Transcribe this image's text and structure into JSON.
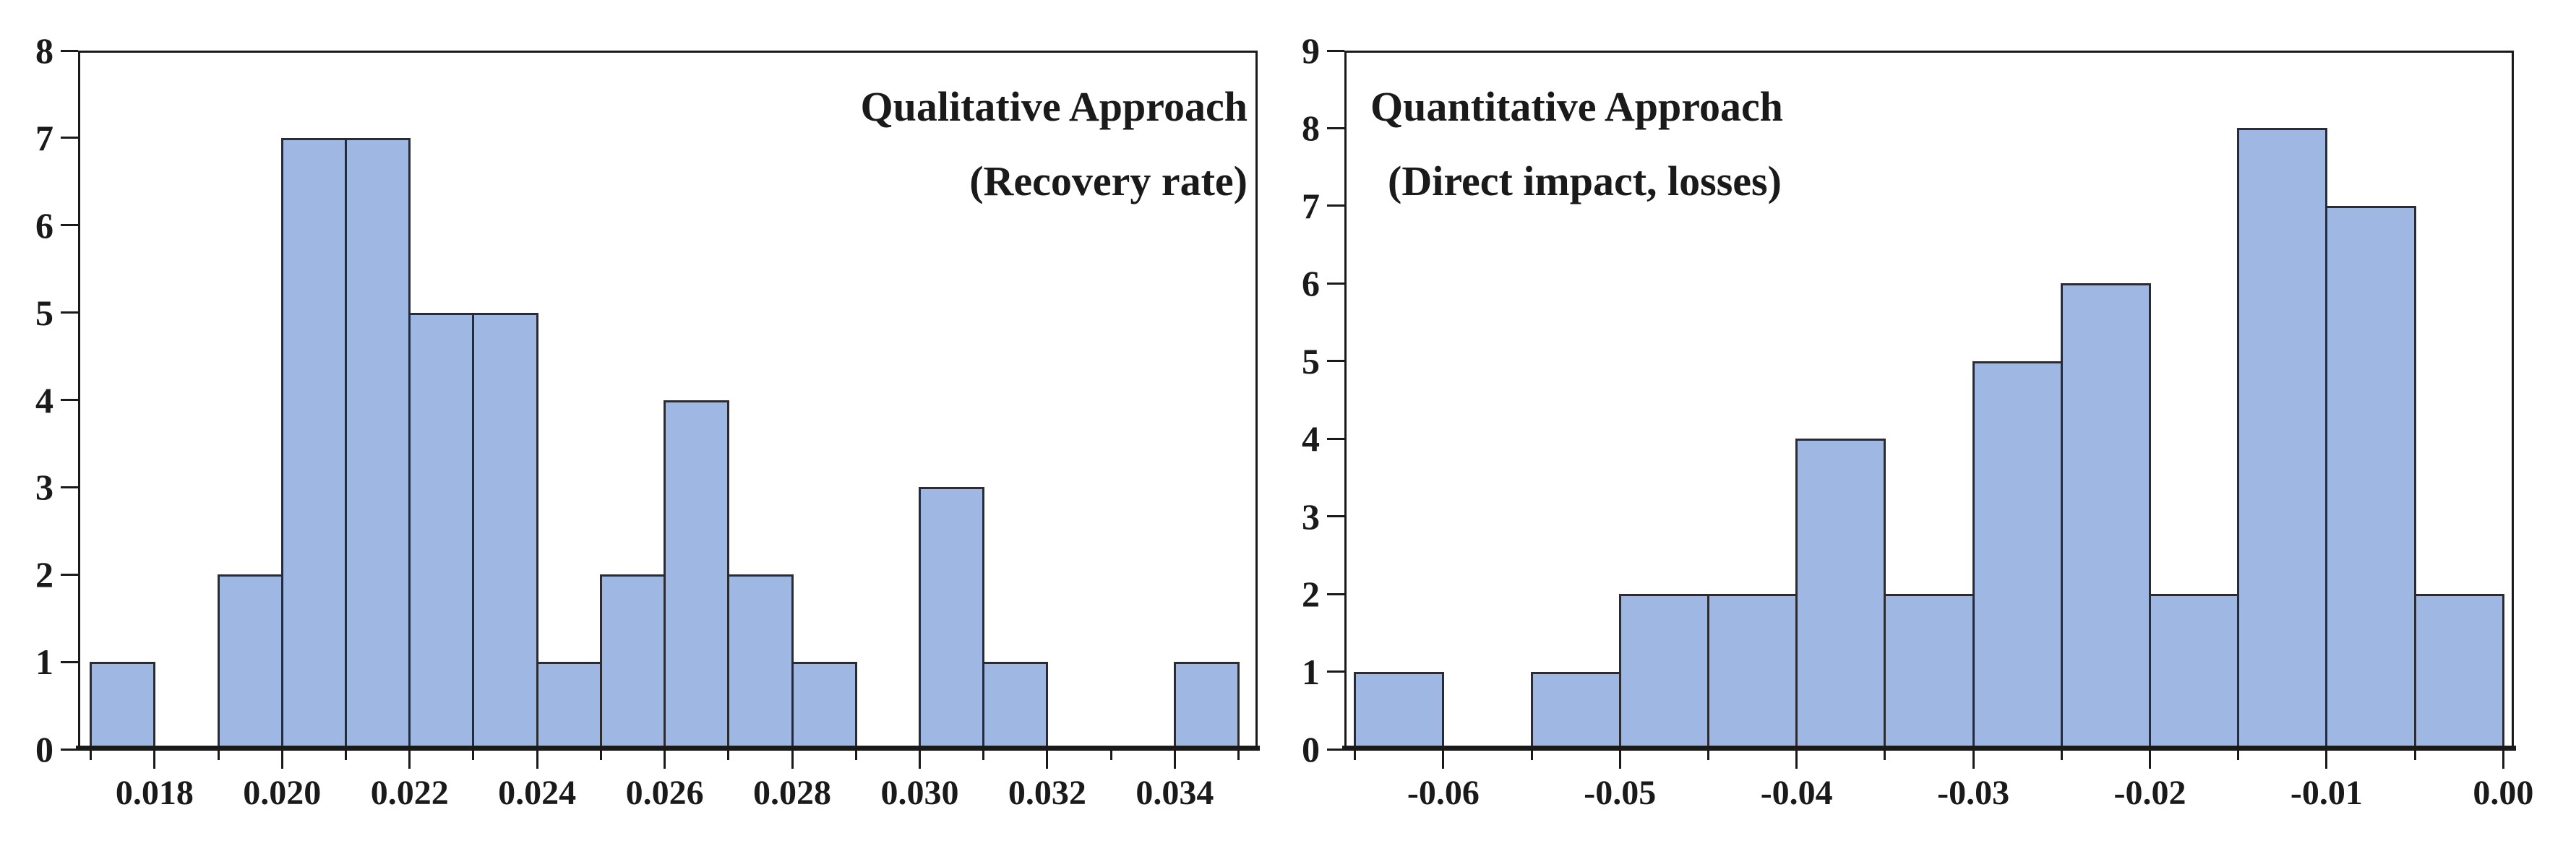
{
  "figure": {
    "background": "#ffffff",
    "bar_fill": "#9fb7e3",
    "bar_border": "#2b2b33",
    "axis_color": "#1a1a1a",
    "text_color": "#1a1a1a"
  },
  "chart_data": [
    {
      "type": "bar",
      "subtype": "histogram",
      "title": "Qualitative Approach",
      "subtitle": "(Recovery rate)",
      "title_position": "top-right",
      "bin_start": 0.017,
      "bin_width": 0.001,
      "counts": [
        1,
        0,
        2,
        7,
        7,
        5,
        5,
        1,
        2,
        4,
        2,
        1,
        0,
        3,
        1,
        0,
        0,
        1
      ],
      "total_observations": 42,
      "xlim": [
        0.0168,
        0.0353
      ],
      "ylim": [
        0,
        8
      ],
      "x_major_ticks": [
        0.018,
        0.02,
        0.022,
        0.024,
        0.026,
        0.028,
        0.03,
        0.032,
        0.034
      ],
      "x_major_labels": [
        "0.018",
        "0.020",
        "0.022",
        "0.024",
        "0.026",
        "0.028",
        "0.030",
        "0.032",
        "0.034"
      ],
      "x_minor_ticks": [
        0.017,
        0.019,
        0.021,
        0.023,
        0.025,
        0.027,
        0.029,
        0.031,
        0.033,
        0.035
      ],
      "y_ticks": [
        0,
        1,
        2,
        3,
        4,
        5,
        6,
        7,
        8
      ],
      "y_tick_labels": [
        "0",
        "1",
        "2",
        "3",
        "4",
        "5",
        "6",
        "7",
        "8"
      ],
      "grid": false
    },
    {
      "type": "bar",
      "subtype": "histogram",
      "title": "Quantitative Approach",
      "subtitle": "(Direct impact, losses)",
      "title_position": "top-left",
      "bin_start": -0.065,
      "bin_width": 0.005,
      "counts": [
        1,
        0,
        1,
        2,
        2,
        4,
        2,
        5,
        6,
        2,
        8,
        7,
        2
      ],
      "total_observations": 42,
      "xlim": [
        -0.0656,
        0.0006
      ],
      "ylim": [
        0,
        9
      ],
      "x_major_ticks": [
        -0.06,
        -0.05,
        -0.04,
        -0.03,
        -0.02,
        -0.01,
        0.0
      ],
      "x_major_labels": [
        "-0.06",
        "-0.05",
        "-0.04",
        "-0.03",
        "-0.02",
        "-0.01",
        "0.00"
      ],
      "x_minor_ticks": [
        -0.065,
        -0.055,
        -0.045,
        -0.035,
        -0.025,
        -0.015,
        -0.005
      ],
      "y_ticks": [
        0,
        1,
        2,
        3,
        4,
        5,
        6,
        7,
        8,
        9
      ],
      "y_tick_labels": [
        "0",
        "1",
        "2",
        "3",
        "4",
        "5",
        "6",
        "7",
        "8",
        "9"
      ],
      "grid": false
    }
  ]
}
